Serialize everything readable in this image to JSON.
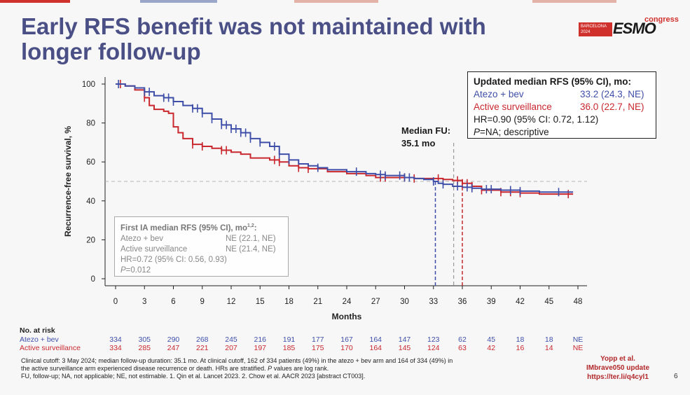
{
  "slide": {
    "title_line1": "Early RFS benefit was not maintained with",
    "title_line2": "longer follow-up",
    "page_number": "6"
  },
  "logo": {
    "box_line1": "BARCELONA",
    "box_line2": "2024",
    "esmo": "ESMO",
    "congress": "congress",
    "brand_color": "#d0312d"
  },
  "colors": {
    "atezo": "#3f4fa8",
    "surveillance": "#c8282e",
    "title": "#4a4f86"
  },
  "legend": {
    "header": "Updated median RFS (95% CI), mo:",
    "atezo_name": "Atezo + bev",
    "atezo_value": "33.2 (24.3, NE)",
    "surv_name": "Active surveillance",
    "surv_value": "36.0 (22.7, NE)",
    "hr": "HR=0.90 (95% CI: 0.72, 1.12)",
    "p_label": "P",
    "p_rest": "=NA; descriptive"
  },
  "first_ia": {
    "header": "First IA median RFS (95% CI), mo",
    "header_sup": "1,2",
    "header_end": ":",
    "atezo_name": "Atezo + bev",
    "atezo_value": "NE (22.1, NE)",
    "surv_name": "Active surveillance",
    "surv_value": "NE (21.4, NE)",
    "hr": "HR=0.72 (95% CI: 0.56, 0.93)",
    "p_label": "P",
    "p_rest": "=0.012"
  },
  "median_fu": {
    "line1": "Median FU:",
    "line2": "35.1 mo"
  },
  "chart_data": {
    "type": "line",
    "title": "",
    "xlabel": "Months",
    "ylabel": "Recurrence-free survival, %",
    "xlim": [
      0,
      48
    ],
    "ylim": [
      0,
      100
    ],
    "x_ticks": [
      0,
      3,
      6,
      9,
      12,
      15,
      18,
      21,
      24,
      27,
      30,
      33,
      36,
      39,
      42,
      45,
      48
    ],
    "y_ticks": [
      0,
      20,
      40,
      60,
      80,
      100
    ],
    "reference_line_y": 50,
    "median_fu_x": 35.1,
    "median_markers": [
      {
        "series": "Atezo + bev",
        "x": 33.2
      },
      {
        "series": "Active surveillance",
        "x": 36.0
      }
    ],
    "series": [
      {
        "name": "Atezo + bev",
        "color": "#3f4fa8",
        "x": [
          0,
          1,
          2,
          3,
          4,
          5,
          6,
          7,
          8,
          9,
          10,
          11,
          12,
          13,
          14,
          15,
          16,
          17,
          18,
          19,
          20,
          21,
          22,
          24,
          26,
          27,
          28,
          30,
          31,
          32,
          33,
          33.5,
          34,
          35,
          36,
          37,
          38,
          40,
          42,
          44,
          46,
          47.5
        ],
        "y": [
          100,
          99,
          98,
          96,
          94,
          93,
          91,
          89,
          87.5,
          85,
          82,
          79,
          77,
          75,
          72,
          70,
          68,
          64,
          61,
          59,
          58,
          57,
          56,
          55,
          54,
          53.5,
          53,
          52,
          51.5,
          51,
          50,
          49,
          48.5,
          47.5,
          47,
          46.5,
          46,
          45.5,
          45,
          44.5,
          44.5,
          44.5
        ],
        "censor_x": [
          0.3,
          3,
          3.5,
          5,
          5.5,
          6,
          8,
          8.5,
          9,
          10,
          11,
          11.5,
          12,
          12.5,
          13,
          13.5,
          14,
          15,
          16.5,
          17,
          18,
          21,
          25,
          27.5,
          28,
          29.5,
          30,
          30.5,
          33,
          34,
          35.5,
          36.5,
          37,
          38.5,
          39,
          41,
          42,
          46
        ]
      },
      {
        "name": "Active surveillance",
        "color": "#c8282e",
        "x": [
          0,
          1,
          2,
          3,
          3.5,
          4,
          5,
          5.5,
          6,
          6.5,
          7,
          8,
          9,
          10,
          11,
          12,
          13,
          14,
          15,
          16,
          17,
          18,
          19,
          20,
          22,
          24,
          26,
          27,
          28,
          30,
          31,
          33,
          34,
          35,
          36,
          37,
          38,
          40,
          42,
          44,
          46,
          47.5
        ],
        "y": [
          100,
          99,
          97,
          93,
          89,
          87,
          86,
          85,
          78,
          75,
          72,
          69,
          68,
          67,
          66,
          65,
          64,
          62,
          62,
          61,
          60,
          58,
          57,
          56.5,
          55,
          54,
          53,
          52,
          52,
          52,
          51.5,
          51.5,
          51,
          50.5,
          49,
          47.5,
          45.5,
          44.5,
          44,
          43.5,
          43.5,
          43.5
        ],
        "censor_x": [
          0.5,
          3,
          8,
          9,
          11,
          11.5,
          16.5,
          17,
          19,
          20,
          27.5,
          28,
          30,
          31,
          33.5,
          35.5,
          36,
          36.5,
          37,
          38,
          40,
          41,
          42,
          47
        ]
      }
    ]
  },
  "risk_table": {
    "header": "No. at risk",
    "months": [
      0,
      3,
      6,
      9,
      12,
      15,
      18,
      21,
      24,
      27,
      30,
      33,
      36,
      39,
      42,
      45,
      48
    ],
    "rows": [
      {
        "name": "Atezo + bev",
        "values": [
          "334",
          "305",
          "290",
          "268",
          "245",
          "216",
          "191",
          "177",
          "167",
          "164",
          "147",
          "123",
          "62",
          "45",
          "18",
          "18",
          "NE"
        ]
      },
      {
        "name": "Active surveillance",
        "values": [
          "334",
          "285",
          "247",
          "221",
          "207",
          "197",
          "185",
          "175",
          "170",
          "164",
          "145",
          "124",
          "63",
          "42",
          "16",
          "14",
          "NE"
        ]
      }
    ]
  },
  "footnote": {
    "line1": "Clinical cutoff: 3 May 2024; median follow-up duration: 35.1 mo. At clinical cutoff, 162 of 334 patients (49%) in the atezo + bev arm and 164 of 334 (49%) in",
    "line2a": "the active surveillance arm experienced disease recurrence or death. HRs are stratified. ",
    "line2_p": "P",
    "line2b": " values are log rank.",
    "line3": "FU, follow-up; NA, not applicable; NE, not estimable. 1. Qin et al. Lancet 2023. 2. Chow et al. AACR 2023 [abstract CT003]."
  },
  "reference": {
    "line1": "Yopp et al.",
    "line2": "IMbrave050 update",
    "line3": "https://ter.li/q4cyl1"
  }
}
